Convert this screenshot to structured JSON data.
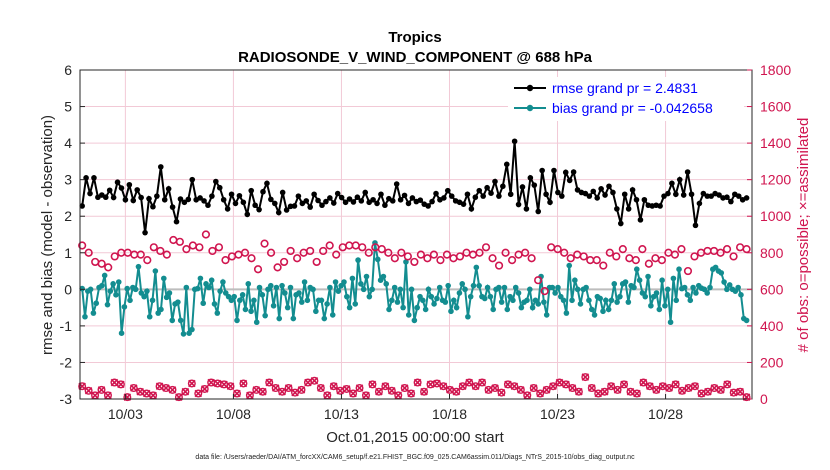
{
  "chart_data": {
    "type": "line",
    "title": "Tropics",
    "subtitle": "RADIOSONDE_V_WIND_COMPONENT @ 688 hPa",
    "xlabel": "Oct.01,2015 00:00:00 start",
    "ylabel": "rmse and bias (model - observation)",
    "y2label": "# of obs: o=possible; ×=assimilated",
    "xlim": [
      0.9,
      32.0
    ],
    "ylim": [
      -3,
      6
    ],
    "y2lim": [
      0,
      1800
    ],
    "xticks": [
      3,
      8,
      13,
      18,
      23,
      28
    ],
    "xticklabels": [
      "10/03",
      "10/08",
      "10/13",
      "10/18",
      "10/23",
      "10/28"
    ],
    "yticks": [
      -3,
      -2,
      -1,
      0,
      1,
      2,
      3,
      4,
      5,
      6
    ],
    "y2ticks": [
      0,
      200,
      400,
      600,
      800,
      1000,
      1200,
      1400,
      1600,
      1800
    ],
    "legend_location": "top-right",
    "footnote": "data file: /Users/raeder/DAI/ATM_forcXX/CAM6_setup/f.e21.FHIST_BGC.f09_025.CAM6assim.011/Diags_NTrS_2015-10/obs_diag_output.nc",
    "time_start": 1.0,
    "time_step": 0.25,
    "series": [
      {
        "name": "rmse grand pr = 2.4831",
        "color": "#000000",
        "axis": "left",
        "values": [
          2.28,
          3.05,
          2.62,
          3.05,
          2.52,
          2.58,
          2.52,
          2.71,
          2.51,
          2.93,
          2.77,
          2.45,
          2.86,
          2.43,
          2.72,
          2.51,
          1.55,
          2.48,
          2.26,
          2.55,
          3.35,
          2.45,
          2.75,
          2.25,
          1.85,
          2.47,
          2.38,
          2.46,
          3.0,
          2.45,
          2.5,
          2.42,
          2.3,
          2.55,
          2.95,
          2.78,
          2.45,
          2.2,
          2.6,
          2.35,
          2.56,
          2.38,
          2.05,
          2.7,
          2.3,
          2.18,
          2.67,
          2.9,
          2.46,
          2.35,
          2.1,
          2.65,
          2.17,
          2.27,
          2.28,
          2.55,
          2.35,
          2.42,
          2.25,
          2.6,
          2.43,
          2.3,
          2.4,
          2.5,
          2.36,
          2.62,
          2.51,
          2.38,
          2.47,
          2.39,
          2.52,
          2.42,
          2.65,
          2.38,
          2.45,
          2.35,
          2.6,
          2.3,
          2.48,
          2.42,
          2.88,
          2.45,
          2.57,
          2.35,
          2.5,
          2.4,
          2.44,
          2.33,
          2.28,
          2.4,
          2.62,
          2.45,
          2.5,
          2.7,
          2.55,
          2.42,
          2.38,
          2.33,
          2.6,
          2.2,
          2.52,
          2.7,
          2.55,
          2.78,
          2.63,
          2.95,
          2.55,
          2.82,
          3.42,
          2.6,
          4.05,
          2.32,
          2.8,
          2.2,
          3.05,
          2.85,
          2.13,
          3.25,
          2.6,
          2.38,
          3.25,
          2.65,
          2.55,
          3.2,
          2.98,
          3.21,
          2.72,
          2.65,
          2.62,
          2.55,
          2.68,
          2.5,
          2.75,
          2.58,
          2.82,
          2.65,
          2.2,
          1.8,
          2.6,
          2.2,
          2.72,
          2.45,
          1.9,
          2.45,
          2.3,
          2.28,
          2.3,
          2.28,
          2.55,
          2.62,
          2.9,
          2.6,
          3.0,
          2.58,
          3.21,
          2.6,
          1.75,
          2.35,
          2.62,
          2.55,
          2.55,
          2.62,
          2.58,
          2.5,
          2.52,
          2.4,
          2.6,
          2.55,
          2.45,
          2.5
        ]
      },
      {
        "name": "bias grand pr = -0.042658",
        "color": "#138d90",
        "axis": "left",
        "values": [
          0.02,
          -0.75,
          -0.05,
          0.0,
          -0.65,
          -0.38,
          0.05,
          0.1,
          0.38,
          -0.42,
          -0.05,
          0.15,
          -0.15,
          0.2,
          -1.2,
          -0.48,
          0.02,
          -0.3,
          0.05,
          0.0,
          0.62,
          -0.1,
          -0.2,
          -0.05,
          -0.75,
          -0.3,
          0.5,
          -0.65,
          -0.55,
          0.3,
          -0.22,
          -0.1,
          -0.85,
          -0.4,
          -0.35,
          -0.85,
          -1.22,
          0.05,
          -1.2,
          -1.1,
          0.0,
          0.02,
          0.3,
          -0.38,
          0.15,
          0.05,
          0.25,
          -0.4,
          -0.65,
          -0.05,
          0.2,
          -0.1,
          -0.2,
          -0.3,
          -0.2,
          -0.85,
          -0.3,
          -0.15,
          -0.55,
          0.15,
          -0.6,
          -0.3,
          -0.9,
          0.05,
          -0.15,
          -0.72,
          0.0,
          0.1,
          -0.45,
          0.05,
          -0.8,
          0.1,
          -0.1,
          -0.5,
          0.05,
          -0.8,
          -0.15,
          -0.1,
          -0.35,
          0.2,
          -0.3,
          0.05,
          0.0,
          -0.6,
          -0.3,
          -0.3,
          -0.8,
          -0.4,
          0.05,
          -0.7,
          0.2,
          -0.05,
          0.1,
          0.2,
          -0.2,
          -0.5,
          0.3,
          -0.4,
          0.8,
          0.15,
          0.0,
          0.35,
          -0.2,
          0.0,
          1.27,
          0.82,
          0.25,
          0.35,
          0.15,
          -0.55,
          -0.3,
          0.05,
          -0.35,
          0.0,
          -0.5,
          0.75,
          -0.7,
          0.0,
          -0.85,
          -0.5,
          -0.2,
          -0.3,
          -0.55,
          0.0,
          -0.2,
          -0.4,
          -0.25,
          0.05,
          -0.3,
          -0.35,
          0.1,
          -0.6,
          -0.3,
          -0.5,
          -0.1,
          0.15,
          0.0,
          -0.75,
          -0.2,
          0.1,
          0.6,
          0.1,
          -0.2,
          -0.25,
          0.05,
          -0.2,
          -0.55,
          0.0,
          0.05,
          -0.35,
          0.05,
          -0.55,
          -0.2,
          -0.3,
          0.05,
          -0.1,
          -0.5,
          -0.35,
          -0.3,
          0.0,
          -0.5,
          -0.3,
          -0.4,
          0.35,
          -0.35,
          -0.7,
          0.05,
          0.05,
          -0.1,
          0.05,
          -0.2,
          -0.3,
          -0.65,
          0.65,
          -0.3,
          0.25,
          0.0,
          -0.4,
          0.0,
          0.05,
          -0.3,
          -0.55,
          -0.7,
          -0.2,
          -0.25,
          -0.6,
          -0.3,
          -0.55,
          -0.3,
          0.15,
          -0.35,
          -0.2,
          0.15,
          0.2,
          -0.35,
          0.1,
          0.05,
          0.55,
          0.25,
          -0.1,
          -0.2,
          0.35,
          -0.45,
          -0.2,
          -0.1,
          -0.55,
          0.25,
          -0.45,
          0.0,
          -0.9,
          0.3,
          -0.3,
          0.55,
          0.02,
          0.05,
          -0.15,
          -0.3,
          0.05,
          -0.1,
          0.1,
          0.03,
          0.0,
          -0.1,
          0.05,
          0.55,
          0.6,
          0.5,
          0.45,
          0.2,
          0.0,
          0.12,
          0.0,
          -0.05,
          0.05,
          -0.15,
          -0.8,
          -0.85
        ]
      },
      {
        "name": "obs possible",
        "marker": "o",
        "color": "#d0154f",
        "axis": "right",
        "values": [
          840,
          800,
          750,
          740,
          720,
          780,
          800,
          800,
          790,
          790,
          760,
          830,
          810,
          790,
          870,
          860,
          820,
          840,
          830,
          900,
          810,
          830,
          760,
          780,
          790,
          800,
          770,
          710,
          850,
          800,
          720,
          750,
          810,
          770,
          800,
          810,
          750,
          810,
          840,
          790,
          830,
          840,
          840,
          830,
          800,
          830,
          820,
          800,
          770,
          800,
          780,
          750,
          790,
          770,
          790,
          760,
          790,
          770,
          780,
          800,
          790,
          800,
          830,
          770,
          730,
          800,
          760,
          790,
          800,
          770,
          650,
          590,
          830,
          820,
          800,
          770,
          790,
          780,
          760,
          760,
          730,
          800,
          780,
          820,
          770,
          760,
          820,
          740,
          770,
          760,
          800,
          790,
          820,
          700,
          780,
          800,
          810,
          810,
          800,
          820,
          780,
          830,
          820
        ]
      },
      {
        "name": "obs assimilated",
        "marker": "x",
        "color": "#d0154f",
        "axis": "right",
        "values": [
          70,
          45,
          20,
          50,
          20,
          90,
          80,
          10,
          60,
          40,
          30,
          20,
          70,
          60,
          50,
          10,
          40,
          85,
          30,
          55,
          90,
          85,
          80,
          70,
          30,
          85,
          20,
          50,
          40,
          90,
          60,
          40,
          60,
          35,
          50,
          90,
          100,
          60,
          20,
          70,
          45,
          55,
          30,
          60,
          20,
          80,
          40,
          70,
          45,
          20,
          60,
          30,
          90,
          40,
          80,
          85,
          70,
          50,
          40,
          70,
          90,
          70,
          90,
          50,
          60,
          35,
          80,
          70,
          50,
          20,
          60,
          30,
          50,
          70,
          90,
          80,
          60,
          40,
          120,
          60,
          30,
          40,
          70,
          50,
          80,
          40,
          30,
          90,
          70,
          50,
          70,
          60,
          80,
          45,
          60,
          70,
          30,
          40,
          60,
          50,
          80,
          35,
          40,
          10
        ]
      }
    ]
  }
}
